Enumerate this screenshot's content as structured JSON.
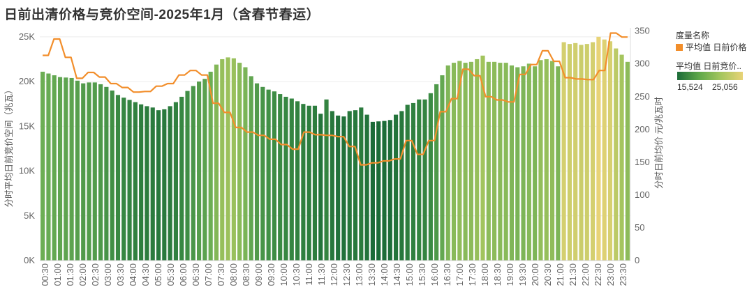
{
  "title": "日前出清价格与竞价空间-2025年1月（含春节春运）",
  "legend": {
    "measure_title": "度量名称",
    "measure_item": "平均值 日前价格",
    "color_title": "平均值 日前竞价..",
    "color_min": "15,524",
    "color_max": "25,056",
    "colors": {
      "line": "#F28E2B",
      "low": "#1B6B38",
      "high": "#E8D377"
    }
  },
  "chart_data": {
    "type": "bar+line",
    "ylabel_left": "分时平均日前竞价空间（兆瓦）",
    "ylabel_right": "分时日前均价 元/兆瓦时",
    "left_axis": {
      "ticks": [
        "0K",
        "5K",
        "10K",
        "15K",
        "20K",
        "25K"
      ],
      "ylim": [
        0,
        26000
      ]
    },
    "right_axis": {
      "ticks": [
        "0",
        "50",
        "100",
        "150",
        "200",
        "250",
        "300",
        "350"
      ],
      "ylim": [
        0,
        355
      ]
    },
    "x_tick_labels": [
      "00:30",
      "01:00",
      "01:30",
      "02:00",
      "02:30",
      "03:00",
      "03:30",
      "04:00",
      "04:30",
      "05:00",
      "05:30",
      "06:00",
      "06:30",
      "07:00",
      "07:30",
      "08:00",
      "08:30",
      "09:00",
      "09:30",
      "10:00",
      "10:30",
      "11:00",
      "11:30",
      "12:00",
      "12:30",
      "13:00",
      "13:30",
      "14:00",
      "14:30",
      "15:00",
      "15:30",
      "16:00",
      "16:30",
      "17:00",
      "17:30",
      "18:00",
      "18:30",
      "19:00",
      "19:30",
      "20:00",
      "20:30",
      "21:00",
      "21:30",
      "22:00",
      "22:30",
      "23:00",
      "23:30"
    ],
    "bar_series": {
      "name": "平均值 日前竞价空间",
      "values": [
        21100,
        20900,
        20700,
        20500,
        20450,
        20400,
        20100,
        19800,
        19900,
        19900,
        19700,
        19400,
        19000,
        18500,
        18200,
        17950,
        17700,
        17450,
        17250,
        17100,
        16800,
        16900,
        17250,
        17700,
        18300,
        18950,
        19500,
        20000,
        20300,
        21100,
        21900,
        22500,
        22700,
        22600,
        22100,
        21600,
        20600,
        19800,
        19400,
        19100,
        18900,
        18600,
        18300,
        18100,
        17800,
        17500,
        17300,
        17300,
        16400,
        18000,
        16700,
        16200,
        16100,
        16700,
        16800,
        17100,
        16300,
        15500,
        15550,
        15600,
        15700,
        16300,
        16700,
        17400,
        17600,
        18000,
        18000,
        18700,
        19700,
        20700,
        21800,
        22100,
        22300,
        22100,
        22200,
        22500,
        22900,
        22200,
        22200,
        22100,
        22100,
        21800,
        21600,
        21700,
        22000,
        21700,
        22400,
        22500,
        22300,
        21700,
        24400,
        24200,
        24300,
        24100,
        24200,
        24400,
        25000,
        24700,
        24500,
        23700,
        23000,
        22200
      ]
    },
    "line_series": {
      "name": "平均值 日前价格",
      "values": [
        313,
        313,
        338,
        338,
        310,
        310,
        278,
        278,
        287,
        287,
        280,
        280,
        270,
        270,
        264,
        264,
        257,
        257,
        258,
        258,
        266,
        266,
        270,
        270,
        283,
        283,
        290,
        290,
        283,
        283,
        240,
        240,
        226,
        226,
        203,
        203,
        196,
        196,
        191,
        191,
        185,
        185,
        177,
        177,
        170,
        170,
        196,
        196,
        192,
        192,
        191,
        191,
        189,
        189,
        174,
        174,
        146,
        146,
        149,
        149,
        152,
        152,
        155,
        155,
        183,
        183,
        162,
        162,
        183,
        183,
        227,
        227,
        247,
        247,
        292,
        292,
        282,
        282,
        250,
        250,
        245,
        245,
        242,
        242,
        284,
        284,
        299,
        299,
        320,
        320,
        304,
        304,
        279,
        279,
        277,
        277,
        276,
        276,
        290,
        290,
        347,
        347,
        341,
        341
      ]
    }
  }
}
